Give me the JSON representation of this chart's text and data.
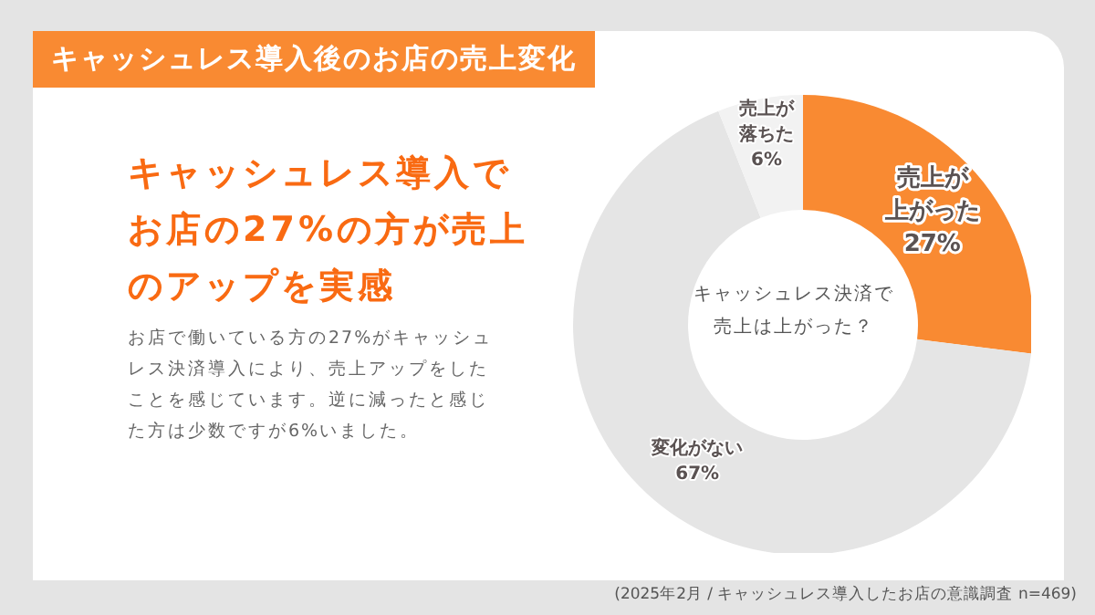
{
  "chart_data": {
    "type": "donut",
    "title": "キャッシュレス導入後のお店の売上変化",
    "subtitle": "キャッシュレス導入でお店の27%の方が売上のアップを実感",
    "categories": [
      "売上が上がった",
      "変化がない",
      "売上が落ちた"
    ],
    "values": [
      27,
      67,
      6
    ],
    "value_labels": [
      "27%",
      "67%",
      "6%"
    ],
    "colors": [
      "#f98a32",
      "#e5e5e5",
      "#f2f2f2"
    ],
    "data_labels": true,
    "legend": false,
    "annotations": [
      "キャッシュレス決済で売上は上がった？",
      "お店で働いている方の27%がキャッシュレス決済導入により、売上アップをしたことを感じています。逆に減ったと感じた方は少数ですが6%いました。",
      "(2025年2月 / キャッシュレス導入したお店の意識調査 n=469)"
    ]
  }
}
